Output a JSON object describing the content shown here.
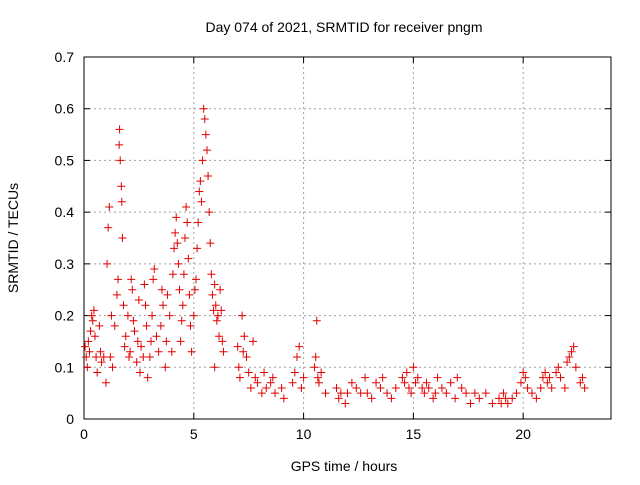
{
  "chart_data": {
    "type": "scatter",
    "title": "Day 074 of 2021, SRMTID for receiver pngm",
    "xlabel": "GPS time / hours",
    "ylabel": "SRMTID / TECUs",
    "xlim": [
      0,
      24
    ],
    "ylim": [
      0,
      0.7
    ],
    "xticks": [
      0,
      5,
      10,
      15,
      20
    ],
    "yticks": [
      0,
      0.1,
      0.2,
      0.3,
      0.4,
      0.5,
      0.6,
      0.7
    ],
    "xtick_labels": [
      "0",
      "5",
      "10",
      "15",
      "20"
    ],
    "ytick_labels": [
      "0",
      "0.1",
      "0.2",
      "0.3",
      "0.4",
      "0.5",
      "0.6",
      "0.7"
    ],
    "grid": true,
    "marker": "+",
    "color": "#e00000",
    "series": [
      {
        "name": "SRMTID",
        "points": [
          [
            0.05,
            0.14
          ],
          [
            0.1,
            0.12
          ],
          [
            0.15,
            0.1
          ],
          [
            0.2,
            0.15
          ],
          [
            0.25,
            0.13
          ],
          [
            0.3,
            0.17
          ],
          [
            0.35,
            0.2
          ],
          [
            0.4,
            0.19
          ],
          [
            0.45,
            0.21
          ],
          [
            0.5,
            0.16
          ],
          [
            0.55,
            0.12
          ],
          [
            0.6,
            0.09
          ],
          [
            0.7,
            0.18
          ],
          [
            0.75,
            0.13
          ],
          [
            0.8,
            0.11
          ],
          [
            0.9,
            0.12
          ],
          [
            1.0,
            0.07
          ],
          [
            1.05,
            0.3
          ],
          [
            1.1,
            0.37
          ],
          [
            1.15,
            0.41
          ],
          [
            1.2,
            0.12
          ],
          [
            1.25,
            0.2
          ],
          [
            1.3,
            0.1
          ],
          [
            1.4,
            0.18
          ],
          [
            1.5,
            0.24
          ],
          [
            1.55,
            0.27
          ],
          [
            1.6,
            0.53
          ],
          [
            1.62,
            0.56
          ],
          [
            1.65,
            0.5
          ],
          [
            1.7,
            0.45
          ],
          [
            1.72,
            0.42
          ],
          [
            1.75,
            0.35
          ],
          [
            1.8,
            0.22
          ],
          [
            1.85,
            0.14
          ],
          [
            1.9,
            0.16
          ],
          [
            2.0,
            0.2
          ],
          [
            2.05,
            0.12
          ],
          [
            2.1,
            0.13
          ],
          [
            2.15,
            0.27
          ],
          [
            2.2,
            0.25
          ],
          [
            2.25,
            0.19
          ],
          [
            2.3,
            0.17
          ],
          [
            2.4,
            0.11
          ],
          [
            2.45,
            0.15
          ],
          [
            2.5,
            0.23
          ],
          [
            2.55,
            0.09
          ],
          [
            2.6,
            0.14
          ],
          [
            2.7,
            0.12
          ],
          [
            2.75,
            0.26
          ],
          [
            2.8,
            0.22
          ],
          [
            2.85,
            0.18
          ],
          [
            2.9,
            0.08
          ],
          [
            3.0,
            0.12
          ],
          [
            3.05,
            0.15
          ],
          [
            3.1,
            0.2
          ],
          [
            3.15,
            0.27
          ],
          [
            3.2,
            0.29
          ],
          [
            3.3,
            0.16
          ],
          [
            3.4,
            0.13
          ],
          [
            3.5,
            0.18
          ],
          [
            3.55,
            0.25
          ],
          [
            3.6,
            0.22
          ],
          [
            3.7,
            0.1
          ],
          [
            3.75,
            0.15
          ],
          [
            3.8,
            0.24
          ],
          [
            3.9,
            0.2
          ],
          [
            4.0,
            0.13
          ],
          [
            4.05,
            0.28
          ],
          [
            4.1,
            0.33
          ],
          [
            4.15,
            0.36
          ],
          [
            4.2,
            0.39
          ],
          [
            4.25,
            0.34
          ],
          [
            4.3,
            0.3
          ],
          [
            4.35,
            0.25
          ],
          [
            4.4,
            0.15
          ],
          [
            4.45,
            0.19
          ],
          [
            4.5,
            0.22
          ],
          [
            4.55,
            0.28
          ],
          [
            4.6,
            0.35
          ],
          [
            4.65,
            0.41
          ],
          [
            4.7,
            0.38
          ],
          [
            4.75,
            0.31
          ],
          [
            4.8,
            0.24
          ],
          [
            4.85,
            0.18
          ],
          [
            4.9,
            0.13
          ],
          [
            5.0,
            0.2
          ],
          [
            5.05,
            0.25
          ],
          [
            5.1,
            0.27
          ],
          [
            5.15,
            0.33
          ],
          [
            5.2,
            0.38
          ],
          [
            5.25,
            0.44
          ],
          [
            5.3,
            0.46
          ],
          [
            5.35,
            0.42
          ],
          [
            5.4,
            0.5
          ],
          [
            5.45,
            0.6
          ],
          [
            5.5,
            0.58
          ],
          [
            5.55,
            0.55
          ],
          [
            5.6,
            0.52
          ],
          [
            5.65,
            0.47
          ],
          [
            5.7,
            0.4
          ],
          [
            5.75,
            0.34
          ],
          [
            5.8,
            0.28
          ],
          [
            5.85,
            0.24
          ],
          [
            5.9,
            0.21
          ],
          [
            5.95,
            0.26
          ],
          [
            6.0,
            0.22
          ],
          [
            6.05,
            0.19
          ],
          [
            6.1,
            0.2
          ],
          [
            6.15,
            0.16
          ],
          [
            6.2,
            0.25
          ],
          [
            6.25,
            0.21
          ],
          [
            6.3,
            0.15
          ],
          [
            6.35,
            0.13
          ],
          [
            5.95,
            0.1
          ],
          [
            7.0,
            0.14
          ],
          [
            7.05,
            0.1
          ],
          [
            7.1,
            0.08
          ],
          [
            7.2,
            0.2
          ],
          [
            7.25,
            0.13
          ],
          [
            7.3,
            0.16
          ],
          [
            7.4,
            0.12
          ],
          [
            7.5,
            0.09
          ],
          [
            7.6,
            0.06
          ],
          [
            7.7,
            0.15
          ],
          [
            7.8,
            0.08
          ],
          [
            7.9,
            0.07
          ],
          [
            8.1,
            0.05
          ],
          [
            8.2,
            0.09
          ],
          [
            8.3,
            0.06
          ],
          [
            8.5,
            0.07
          ],
          [
            8.6,
            0.08
          ],
          [
            8.7,
            0.05
          ],
          [
            9.0,
            0.06
          ],
          [
            9.1,
            0.04
          ],
          [
            9.5,
            0.07
          ],
          [
            9.6,
            0.09
          ],
          [
            9.7,
            0.12
          ],
          [
            9.8,
            0.14
          ],
          [
            9.9,
            0.06
          ],
          [
            10.0,
            0.08
          ],
          [
            10.5,
            0.1
          ],
          [
            10.55,
            0.12
          ],
          [
            10.6,
            0.19
          ],
          [
            10.65,
            0.08
          ],
          [
            10.7,
            0.07
          ],
          [
            10.8,
            0.09
          ],
          [
            11.0,
            0.05
          ],
          [
            11.5,
            0.06
          ],
          [
            11.6,
            0.04
          ],
          [
            11.7,
            0.05
          ],
          [
            11.9,
            0.03
          ],
          [
            12.0,
            0.05
          ],
          [
            12.2,
            0.07
          ],
          [
            12.4,
            0.06
          ],
          [
            12.6,
            0.05
          ],
          [
            12.8,
            0.08
          ],
          [
            12.9,
            0.05
          ],
          [
            13.1,
            0.04
          ],
          [
            13.3,
            0.07
          ],
          [
            13.5,
            0.06
          ],
          [
            13.6,
            0.08
          ],
          [
            13.8,
            0.05
          ],
          [
            14.0,
            0.04
          ],
          [
            14.2,
            0.06
          ],
          [
            14.5,
            0.08
          ],
          [
            14.6,
            0.07
          ],
          [
            14.7,
            0.09
          ],
          [
            14.8,
            0.06
          ],
          [
            14.9,
            0.05
          ],
          [
            15.0,
            0.1
          ],
          [
            15.1,
            0.07
          ],
          [
            15.2,
            0.08
          ],
          [
            15.4,
            0.06
          ],
          [
            15.5,
            0.05
          ],
          [
            15.6,
            0.07
          ],
          [
            15.7,
            0.06
          ],
          [
            15.9,
            0.04
          ],
          [
            16.0,
            0.05
          ],
          [
            16.1,
            0.08
          ],
          [
            16.3,
            0.06
          ],
          [
            16.5,
            0.05
          ],
          [
            16.7,
            0.07
          ],
          [
            16.9,
            0.04
          ],
          [
            17.0,
            0.08
          ],
          [
            17.2,
            0.06
          ],
          [
            17.4,
            0.05
          ],
          [
            17.6,
            0.03
          ],
          [
            17.8,
            0.05
          ],
          [
            18.0,
            0.04
          ],
          [
            18.3,
            0.05
          ],
          [
            18.6,
            0.03
          ],
          [
            18.9,
            0.04
          ],
          [
            19.0,
            0.03
          ],
          [
            19.1,
            0.05
          ],
          [
            19.2,
            0.04
          ],
          [
            19.3,
            0.03
          ],
          [
            19.5,
            0.04
          ],
          [
            19.7,
            0.05
          ],
          [
            19.9,
            0.07
          ],
          [
            20.0,
            0.09
          ],
          [
            20.1,
            0.08
          ],
          [
            20.2,
            0.06
          ],
          [
            20.4,
            0.05
          ],
          [
            20.6,
            0.04
          ],
          [
            20.8,
            0.06
          ],
          [
            20.9,
            0.08
          ],
          [
            21.0,
            0.09
          ],
          [
            21.1,
            0.07
          ],
          [
            21.2,
            0.08
          ],
          [
            21.3,
            0.06
          ],
          [
            21.5,
            0.09
          ],
          [
            21.6,
            0.1
          ],
          [
            21.7,
            0.08
          ],
          [
            21.9,
            0.06
          ],
          [
            22.0,
            0.11
          ],
          [
            22.1,
            0.12
          ],
          [
            22.2,
            0.13
          ],
          [
            22.3,
            0.14
          ],
          [
            22.4,
            0.1
          ],
          [
            22.6,
            0.07
          ],
          [
            22.7,
            0.08
          ],
          [
            22.8,
            0.06
          ]
        ]
      }
    ]
  }
}
